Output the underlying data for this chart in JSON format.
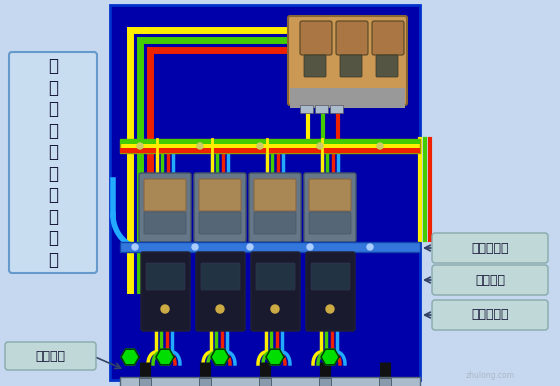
{
  "bg_color": "#0000aa",
  "outer_bg": "#c5d8f0",
  "title_box_text": "总\n配\n电\n柜\n电\n缆\n接\n线\n方\n法",
  "title_box_color": "#c8ddf0",
  "title_box_border": "#6699cc",
  "label1": "干包电缆头",
  "label2": "角钢支架",
  "label3": "保护零线排",
  "label4": "重复接地",
  "label_box_color": "#c0d8d8",
  "label_box_border": "#88aaaa",
  "wire_yellow": "#ffee00",
  "wire_green": "#44cc00",
  "wire_green2": "#00dd44",
  "wire_red": "#ee2200",
  "wire_blue": "#22aaff",
  "connector_green": "#00dd00",
  "blue_bar_color": "#3377dd",
  "gray_bar_color": "#aabbcc",
  "stripe_yellow": "#ccdd00",
  "panel_border": "#0033cc"
}
